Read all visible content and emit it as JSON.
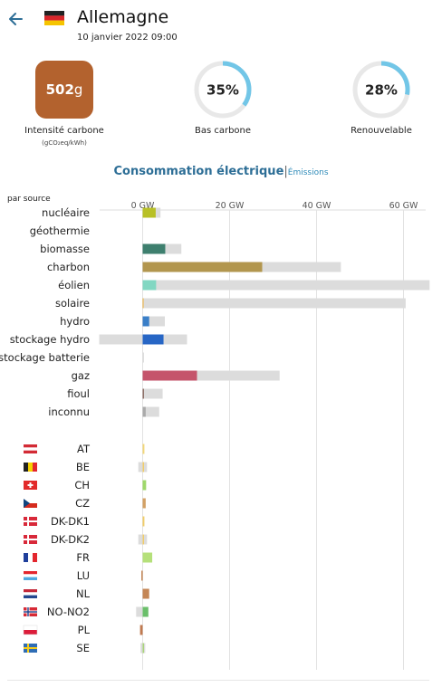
{
  "header": {
    "title": "Allemagne",
    "datetime": "10 janvier 2022 09:00",
    "back_icon": "arrow-left-icon",
    "flag_icon": "flag-de-icon"
  },
  "kpis": {
    "carbon_intensity": {
      "value": "502",
      "unit": "g",
      "label": "Intensité carbone",
      "sublabel": "(gCO₂eq/kWh)",
      "color": "#b3622e"
    },
    "low_carbon": {
      "value_text": "35%",
      "fraction": 0.35,
      "label": "Bas carbone",
      "color": "#72c6e7"
    },
    "renewable": {
      "value_text": "28%",
      "fraction": 0.28,
      "label": "Renouvelable",
      "color": "#72c6e7"
    }
  },
  "tabs": {
    "consumption": "Consommation électrique",
    "separator": "|",
    "emissions": "Émissions"
  },
  "by_source_label": "par source",
  "chart_data": {
    "type": "bar",
    "unit": "GW",
    "xlim": [
      -5,
      66
    ],
    "ticks": [
      {
        "value": 0,
        "label": "0 GW"
      },
      {
        "value": 20,
        "label": "20 GW"
      },
      {
        "value": 40,
        "label": "40 GW"
      },
      {
        "value": 60,
        "label": "60 GW"
      }
    ],
    "production": [
      {
        "name": "nucléaire",
        "value": 3.0,
        "capacity": 4.1,
        "color": "#b8c026"
      },
      {
        "name": "géothermie",
        "value": 0,
        "capacity": 0,
        "color": "#c0c0c0"
      },
      {
        "name": "biomasse",
        "value": 5.2,
        "capacity": 8.9,
        "color": "#3e7f6e"
      },
      {
        "name": "charbon",
        "value": 27.5,
        "capacity": 45.6,
        "color": "#b2964e"
      },
      {
        "name": "éolien",
        "value": 3.1,
        "capacity": 66.0,
        "color": "#82d7c2"
      },
      {
        "name": "solaire",
        "value": 0.2,
        "capacity": 60.5,
        "color": "#f0b23a"
      },
      {
        "name": "hydro",
        "value": 1.5,
        "capacity": 5.1,
        "color": "#3a7fc8"
      },
      {
        "name": "stockage hydro",
        "value": 4.8,
        "capacity": 10.2,
        "negative_capacity": -10.0,
        "color": "#2766c5"
      },
      {
        "name": "stockage batterie",
        "value": 0,
        "capacity": 0.3,
        "color": "#7c8fc4"
      },
      {
        "name": "gaz",
        "value": 12.5,
        "capacity": 31.5,
        "color": "#c5546b"
      },
      {
        "name": "fioul",
        "value": 0.3,
        "capacity": 4.6,
        "color": "#8a6b62"
      },
      {
        "name": "inconnu",
        "value": 0.7,
        "capacity": 3.8,
        "color": "#aaaaaa"
      }
    ],
    "exchanges": [
      {
        "name": "AT",
        "value": 0.4,
        "color": "#f2d77a",
        "flag": "flag-at-icon"
      },
      {
        "name": "BE",
        "value": 0.3,
        "min": -1.0,
        "max": 1.0,
        "color": "#f0cc6a",
        "flag": "flag-be-icon"
      },
      {
        "name": "CH",
        "value": 0.8,
        "color": "#9fd86b",
        "flag": "flag-ch-icon"
      },
      {
        "name": "CZ",
        "value": 0.7,
        "color": "#d3a165",
        "flag": "flag-cz-icon"
      },
      {
        "name": "DK-DK1",
        "value": 0.4,
        "color": "#f0cc6a",
        "flag": "flag-dk-icon"
      },
      {
        "name": "DK-DK2",
        "value": 0.3,
        "min": -1.0,
        "max": 1.0,
        "color": "#f0cc6a",
        "flag": "flag-dk-icon"
      },
      {
        "name": "FR",
        "value": 2.2,
        "color": "#b5e07a",
        "flag": "flag-fr-icon"
      },
      {
        "name": "LU",
        "value": -0.3,
        "color": "#c48655",
        "flag": "flag-lu-icon"
      },
      {
        "name": "NL",
        "value": 1.5,
        "color": "#c48655",
        "flag": "flag-nl-icon"
      },
      {
        "name": "NO-NO2",
        "value": 1.3,
        "min": -1.5,
        "max": 1.3,
        "color": "#6bbf6b",
        "flag": "flag-no-icon"
      },
      {
        "name": "PL",
        "value": -0.6,
        "color": "#c07a50",
        "flag": "flag-pl-icon"
      },
      {
        "name": "SE",
        "value": 0.2,
        "min": -0.5,
        "max": 0.6,
        "color": "#a9d47a",
        "flag": "flag-se-icon"
      }
    ]
  }
}
